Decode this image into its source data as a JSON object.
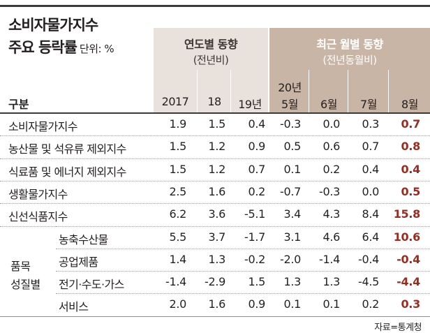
{
  "title": {
    "line1": "소비자물가지수",
    "line2": "주요 등락률",
    "unit": "단위: %"
  },
  "headers": {
    "annual": {
      "title": "연도별 동향",
      "sub": "(전년비)"
    },
    "monthly": {
      "title": "최근 월별 동향",
      "sub": "(전년동월비)"
    },
    "category": "구분",
    "columns": [
      "2017",
      "18",
      "19년",
      "20년",
      "5월",
      "6월",
      "7월",
      "8월"
    ]
  },
  "rows": [
    {
      "label": "소비자물가지수",
      "values": [
        "1.9",
        "1.5",
        "0.4",
        "-0.3",
        "0.0",
        "0.3",
        "0.7"
      ]
    },
    {
      "label": "농산물 및 석유류 제외지수",
      "values": [
        "1.5",
        "1.2",
        "0.9",
        "0.5",
        "0.6",
        "0.7",
        "0.8"
      ]
    },
    {
      "label": "식료품 및 에너지 제외지수",
      "values": [
        "1.5",
        "1.2",
        "0.7",
        "0.1",
        "0.2",
        "0.4",
        "0.4"
      ]
    },
    {
      "label": "생활물가지수",
      "values": [
        "2.5",
        "1.6",
        "0.2",
        "-0.7",
        "-0.3",
        "0.0",
        "0.5"
      ]
    },
    {
      "label": "신선식품지수",
      "values": [
        "6.2",
        "3.6",
        "-5.1",
        "3.4",
        "4.3",
        "8.4",
        "15.8"
      ]
    },
    {
      "label": "농축수산물",
      "values": [
        "5.5",
        "3.7",
        "-1.7",
        "3.1",
        "4.6",
        "6.4",
        "10.6"
      ]
    },
    {
      "label": "공업제품",
      "values": [
        "1.4",
        "1.3",
        "-0.2",
        "-2.0",
        "-1.4",
        "-0.4",
        "-0.4"
      ]
    },
    {
      "label": "전기·수도·가스",
      "values": [
        "-1.4",
        "-2.9",
        "1.5",
        "1.3",
        "1.3",
        "-4.5",
        "-4.4"
      ]
    },
    {
      "label": "서비스",
      "values": [
        "2.0",
        "1.6",
        "0.9",
        "0.1",
        "0.1",
        "0.2",
        "0.3"
      ]
    }
  ],
  "group": {
    "line1": "품목",
    "line2": "성질별"
  },
  "source": "자료=통계청",
  "colors": {
    "highlight": "#9b2b1f",
    "annual_header": "#e9e2dc",
    "monthly_header": "#c8b5a6"
  }
}
